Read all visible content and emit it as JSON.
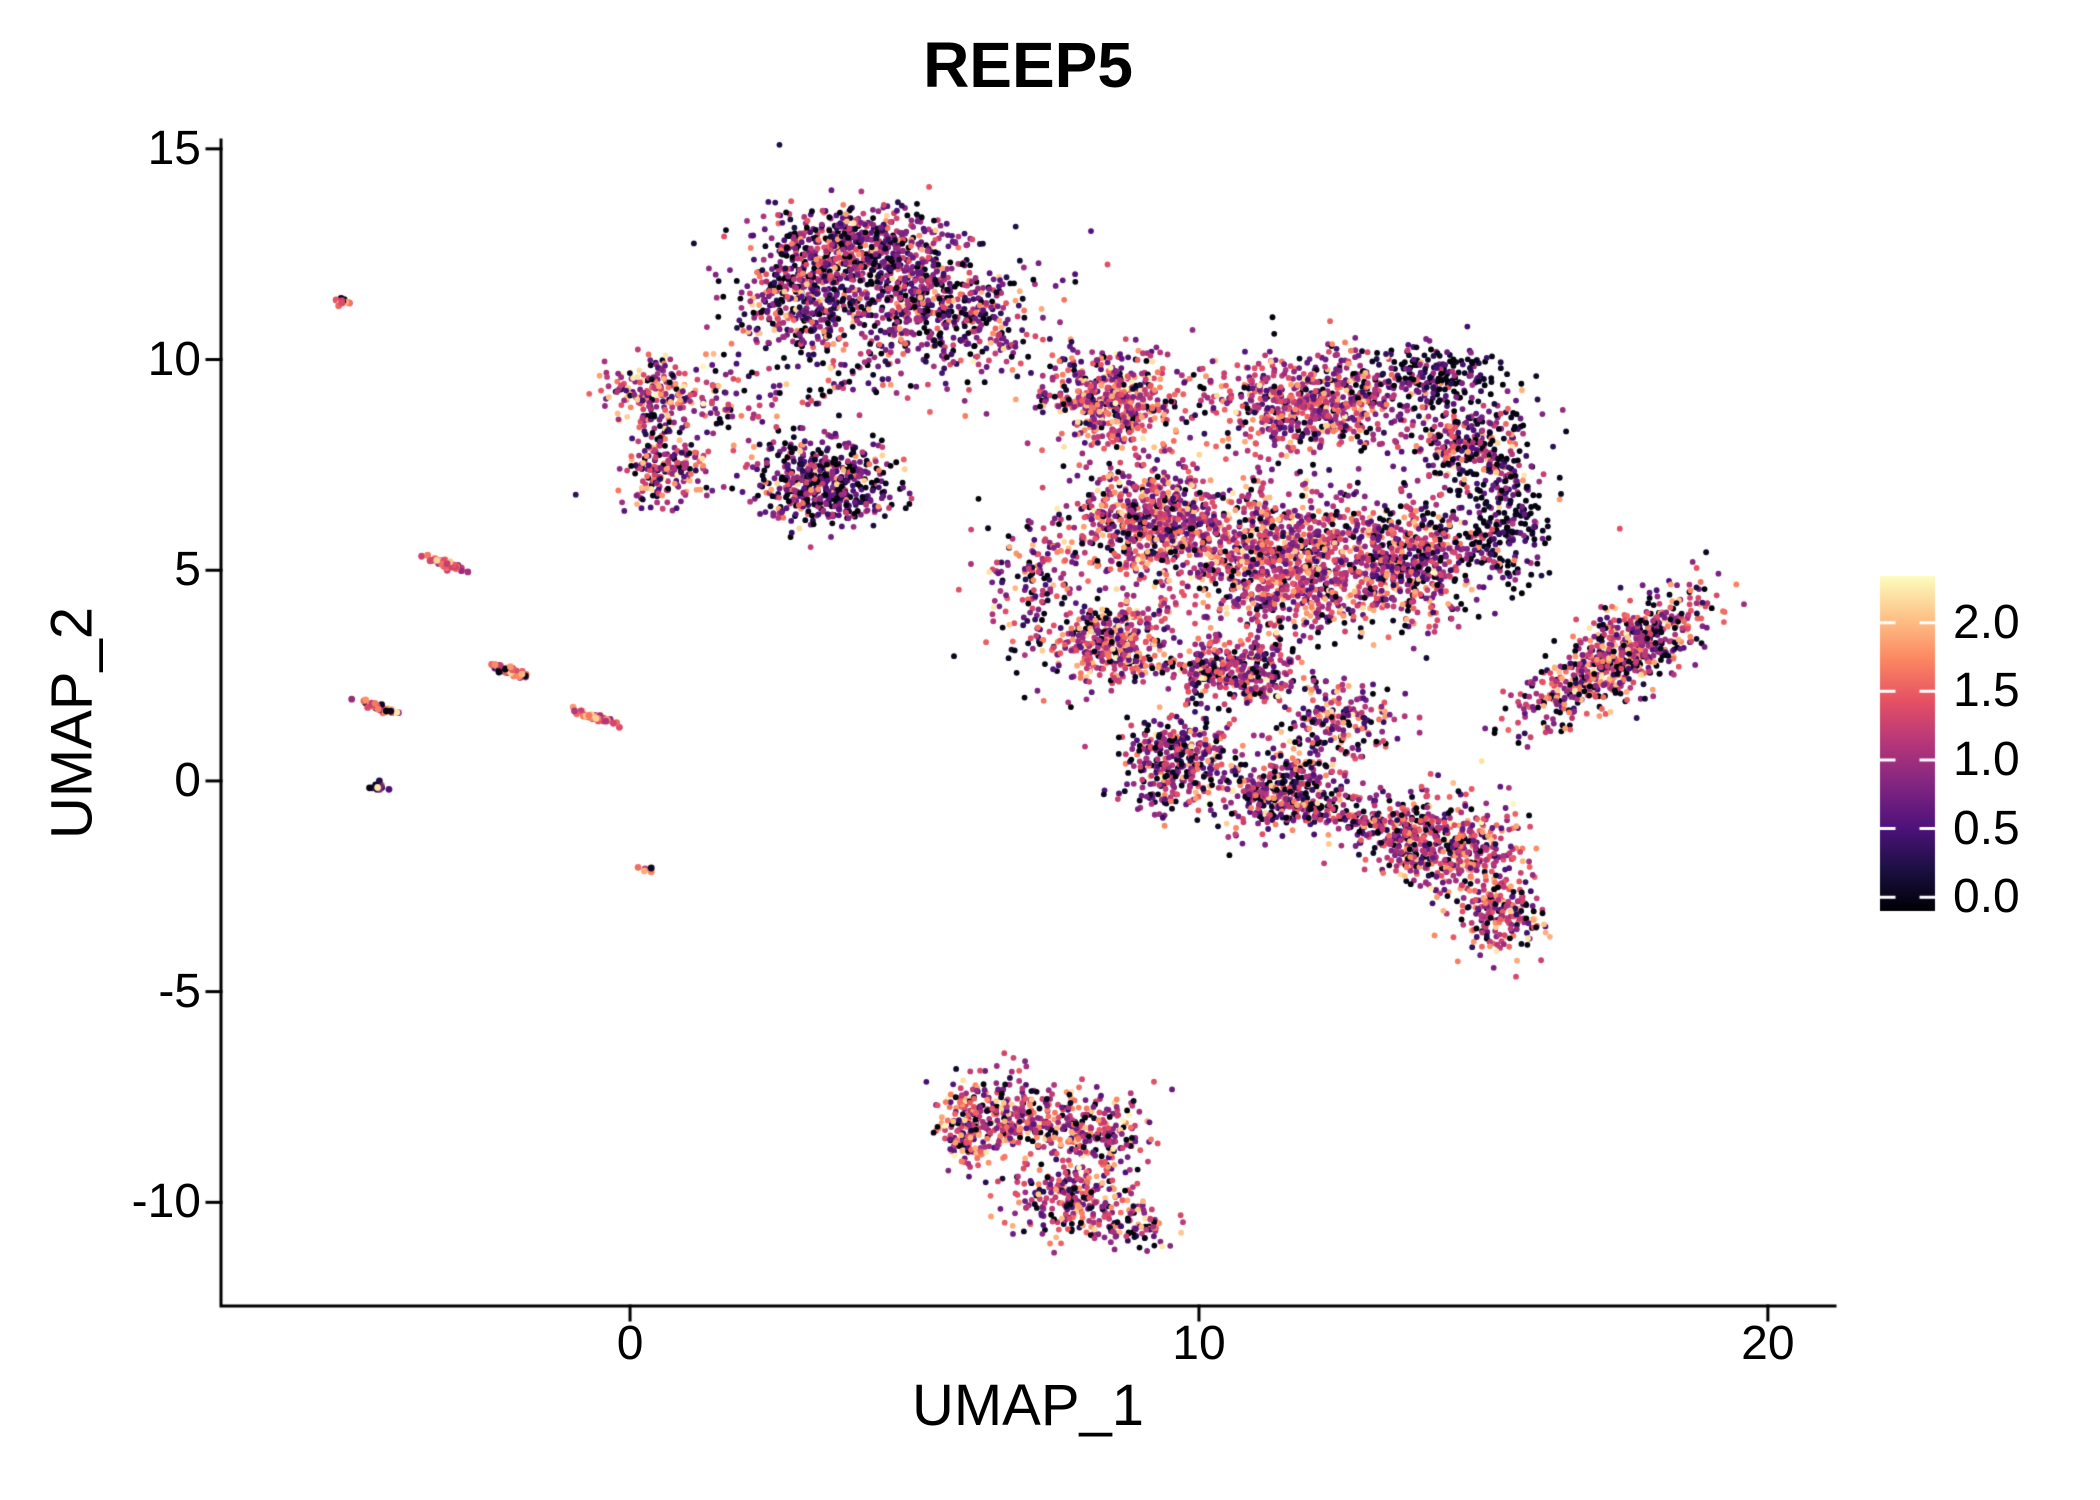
{
  "chart_data": {
    "type": "scatter",
    "title": "REEP5",
    "xlabel": "UMAP_1",
    "ylabel": "UMAP_2",
    "xlim": [
      -7.19,
      21.18
    ],
    "ylim": [
      -12.46,
      15.21
    ],
    "xticks": [
      0,
      10,
      20
    ],
    "yticks": [
      15,
      10,
      5,
      0,
      -5,
      -10
    ],
    "grid": false,
    "legend_position": "right",
    "point_radius": 2.9,
    "colorbar": {
      "label_values": [
        "2.0",
        "1.5",
        "1.0",
        "0.5",
        "0.0"
      ],
      "tick_values": [
        2.0,
        1.5,
        1.0,
        0.5,
        0.0
      ],
      "bar_domain": [
        -0.1,
        2.34
      ],
      "color_domain": [
        0,
        2.34
      ],
      "palette": "magma",
      "stops": [
        "#000004",
        "#1C1044",
        "#4F127B",
        "#812581",
        "#B5367A",
        "#E55064",
        "#FB8761",
        "#FEC287",
        "#FCFDBF"
      ]
    },
    "clusters": [
      {
        "x": 4.0,
        "y": 12.65,
        "sx": 0.85,
        "sy": 0.5,
        "n": 600,
        "vm": 0.95,
        "vs": 0.45,
        "plow": 0.18
      },
      {
        "x": 3.0,
        "y": 11.4,
        "sx": 0.55,
        "sy": 0.5,
        "n": 350,
        "vm": 0.9,
        "vs": 0.45,
        "plow": 0.2
      },
      {
        "x": 5.2,
        "y": 11.4,
        "sx": 0.6,
        "sy": 0.5,
        "n": 350,
        "vm": 0.95,
        "vs": 0.45,
        "plow": 0.18
      },
      {
        "x": 4.2,
        "y": 10.1,
        "sx": 1.1,
        "sy": 0.55,
        "n": 160,
        "vm": 0.9,
        "vs": 0.5,
        "plow": 0.2
      },
      {
        "x": 6.4,
        "y": 10.9,
        "sx": 0.45,
        "sy": 0.65,
        "n": 90,
        "vm": 0.9,
        "vs": 0.5,
        "plow": 0.2
      },
      {
        "x": 2.1,
        "y": 9.0,
        "sx": 0.8,
        "sy": 0.6,
        "n": 80,
        "vm": 1.0,
        "vs": 0.5,
        "plow": 0.2
      },
      {
        "x": 0.5,
        "y": 9.2,
        "sx": 0.45,
        "sy": 0.4,
        "n": 200,
        "vm": 1.25,
        "vs": 0.5,
        "plow": 0.12
      },
      {
        "x": 0.6,
        "y": 7.35,
        "sx": 0.4,
        "sy": 0.42,
        "n": 180,
        "vm": 1.1,
        "vs": 0.5,
        "plow": 0.15
      },
      {
        "x": 0.55,
        "y": 8.3,
        "sx": 0.25,
        "sy": 0.5,
        "n": 40,
        "vm": 1.1,
        "vs": 0.5,
        "plow": 0.15
      },
      {
        "x": 3.4,
        "y": 7.1,
        "sx": 0.6,
        "sy": 0.5,
        "n": 520,
        "vm": 0.8,
        "vs": 0.42,
        "plow": 0.22
      },
      {
        "x": 8.5,
        "y": 9.0,
        "sx": 0.55,
        "sy": 0.6,
        "n": 450,
        "vm": 1.25,
        "vs": 0.45,
        "plow": 0.1
      },
      {
        "x": 12.0,
        "y": 9.0,
        "sx": 0.95,
        "sy": 0.55,
        "n": 650,
        "vm": 1.15,
        "vs": 0.45,
        "plow": 0.12
      },
      {
        "x": 14.1,
        "y": 9.6,
        "sx": 0.7,
        "sy": 0.35,
        "n": 200,
        "vm": 0.55,
        "vs": 0.35,
        "plow": 0.4
      },
      {
        "x": 14.8,
        "y": 8.0,
        "sx": 0.55,
        "sy": 0.55,
        "n": 300,
        "vm": 0.9,
        "vs": 0.5,
        "plow": 0.25
      },
      {
        "x": 9.2,
        "y": 6.1,
        "sx": 0.75,
        "sy": 0.75,
        "n": 700,
        "vm": 1.2,
        "vs": 0.45,
        "plow": 0.12
      },
      {
        "x": 11.5,
        "y": 5.2,
        "sx": 0.85,
        "sy": 0.85,
        "n": 900,
        "vm": 1.2,
        "vs": 0.45,
        "plow": 0.12
      },
      {
        "x": 13.6,
        "y": 5.2,
        "sx": 0.6,
        "sy": 0.7,
        "n": 550,
        "vm": 1.15,
        "vs": 0.45,
        "plow": 0.15
      },
      {
        "x": 8.5,
        "y": 3.3,
        "sx": 0.55,
        "sy": 0.5,
        "n": 400,
        "vm": 1.2,
        "vs": 0.45,
        "plow": 0.12
      },
      {
        "x": 10.6,
        "y": 2.6,
        "sx": 0.6,
        "sy": 0.45,
        "n": 350,
        "vm": 1.1,
        "vs": 0.45,
        "plow": 0.15
      },
      {
        "x": 15.3,
        "y": 6.1,
        "sx": 0.4,
        "sy": 0.8,
        "n": 250,
        "vm": 0.65,
        "vs": 0.4,
        "plow": 0.35
      },
      {
        "x": 7.1,
        "y": 4.5,
        "sx": 0.45,
        "sy": 0.95,
        "n": 170,
        "vm": 1.0,
        "vs": 0.5,
        "plow": 0.18
      },
      {
        "x": 12.5,
        "y": 1.4,
        "sx": 0.5,
        "sy": 0.4,
        "n": 180,
        "vm": 1.05,
        "vs": 0.45,
        "plow": 0.18
      },
      {
        "x": 9.6,
        "y": 0.4,
        "sx": 0.5,
        "sy": 0.55,
        "n": 350,
        "vm": 1.0,
        "vs": 0.45,
        "plow": 0.2
      },
      {
        "x": 11.5,
        "y": -0.2,
        "sx": 0.7,
        "sy": 0.5,
        "n": 400,
        "vm": 1.0,
        "vs": 0.45,
        "plow": 0.2
      },
      {
        "x": 12.6,
        "y": -0.9,
        "sx": 0.95,
        "sy": 0.16,
        "n": 120,
        "vm": 1.1,
        "vs": 0.4,
        "plow": 0.15,
        "angle": -18
      },
      {
        "x": 14.5,
        "y": -1.6,
        "sx": 0.6,
        "sy": 0.55,
        "n": 420,
        "vm": 1.3,
        "vs": 0.45,
        "plow": 0.12
      },
      {
        "x": 15.3,
        "y": -3.2,
        "sx": 0.4,
        "sy": 0.45,
        "n": 200,
        "vm": 1.25,
        "vs": 0.45,
        "plow": 0.12
      },
      {
        "x": 13.5,
        "y": -1.1,
        "sx": 0.45,
        "sy": 0.4,
        "n": 150,
        "vm": 1.1,
        "vs": 0.45,
        "plow": 0.18
      },
      {
        "x": 17.3,
        "y": 2.9,
        "sx": 1.05,
        "sy": 0.4,
        "n": 700,
        "vm": 1.2,
        "vs": 0.45,
        "plow": 0.18,
        "angle": 45
      },
      {
        "x": 6.5,
        "y": -8.0,
        "sx": 0.5,
        "sy": 0.5,
        "n": 250,
        "vm": 1.25,
        "vs": 0.45,
        "plow": 0.12
      },
      {
        "x": 8.1,
        "y": -8.3,
        "sx": 0.55,
        "sy": 0.45,
        "n": 250,
        "vm": 1.2,
        "vs": 0.45,
        "plow": 0.15
      },
      {
        "x": 7.8,
        "y": -9.9,
        "sx": 0.55,
        "sy": 0.5,
        "n": 250,
        "vm": 1.15,
        "vs": 0.45,
        "plow": 0.15
      },
      {
        "x": 8.9,
        "y": -10.6,
        "sx": 0.35,
        "sy": 0.3,
        "n": 80,
        "vm": 1.2,
        "vs": 0.45,
        "plow": 0.15
      },
      {
        "x": 5.9,
        "y": -8.2,
        "sx": 0.22,
        "sy": 0.55,
        "n": 120,
        "vm": 1.35,
        "vs": 0.45,
        "plow": 0.1
      },
      {
        "x": -3.25,
        "y": 5.15,
        "sx": 0.18,
        "sy": 0.04,
        "n": 45,
        "vm": 1.55,
        "vs": 0.3,
        "plow": 0.05,
        "angle": -25,
        "r": 3.4
      },
      {
        "x": -4.45,
        "y": 1.75,
        "sx": 0.16,
        "sy": 0.04,
        "n": 35,
        "vm": 1.5,
        "vs": 0.3,
        "plow": 0.08,
        "angle": -25,
        "r": 3.4
      },
      {
        "x": -2.1,
        "y": 2.6,
        "sx": 0.16,
        "sy": 0.04,
        "n": 38,
        "vm": 1.5,
        "vs": 0.3,
        "plow": 0.08,
        "angle": -25,
        "r": 3.4
      },
      {
        "x": -0.6,
        "y": 1.5,
        "sx": 0.18,
        "sy": 0.04,
        "n": 38,
        "vm": 1.55,
        "vs": 0.3,
        "plow": 0.05,
        "angle": -25,
        "r": 3.4
      },
      {
        "x": -5.1,
        "y": 11.35,
        "sx": 0.08,
        "sy": 0.06,
        "n": 14,
        "vm": 1.5,
        "vs": 0.3,
        "plow": 0.1,
        "r": 3.4
      },
      {
        "x": -4.4,
        "y": -0.15,
        "sx": 0.07,
        "sy": 0.06,
        "n": 15,
        "vm": 0.35,
        "vs": 0.3,
        "plow": 0.4,
        "r": 3.4
      },
      {
        "x": 0.25,
        "y": -2.1,
        "sx": 0.06,
        "sy": 0.05,
        "n": 5,
        "vm": 1.3,
        "vs": 0.3,
        "plow": 0.1,
        "r": 3.4
      },
      {
        "x": 11.0,
        "y": 6.0,
        "sx": 2.4,
        "sy": 2.2,
        "n": 90,
        "vm": 1.0,
        "vs": 0.5,
        "plow": 0.25
      },
      {
        "x": 4.1,
        "y": 11.6,
        "sx": 1.5,
        "sy": 1.2,
        "n": 45,
        "vm": 0.9,
        "vs": 0.5,
        "plow": 0.25
      },
      {
        "x": 7.3,
        "y": 10.0,
        "sx": 0.8,
        "sy": 0.5,
        "n": 35,
        "vm": 1.0,
        "vs": 0.5,
        "plow": 0.2
      }
    ]
  },
  "colors": {
    "axis": "#000000",
    "text": "#000000",
    "background": "#FFFFFF",
    "colorbar_tick": "#FFFFFF"
  }
}
